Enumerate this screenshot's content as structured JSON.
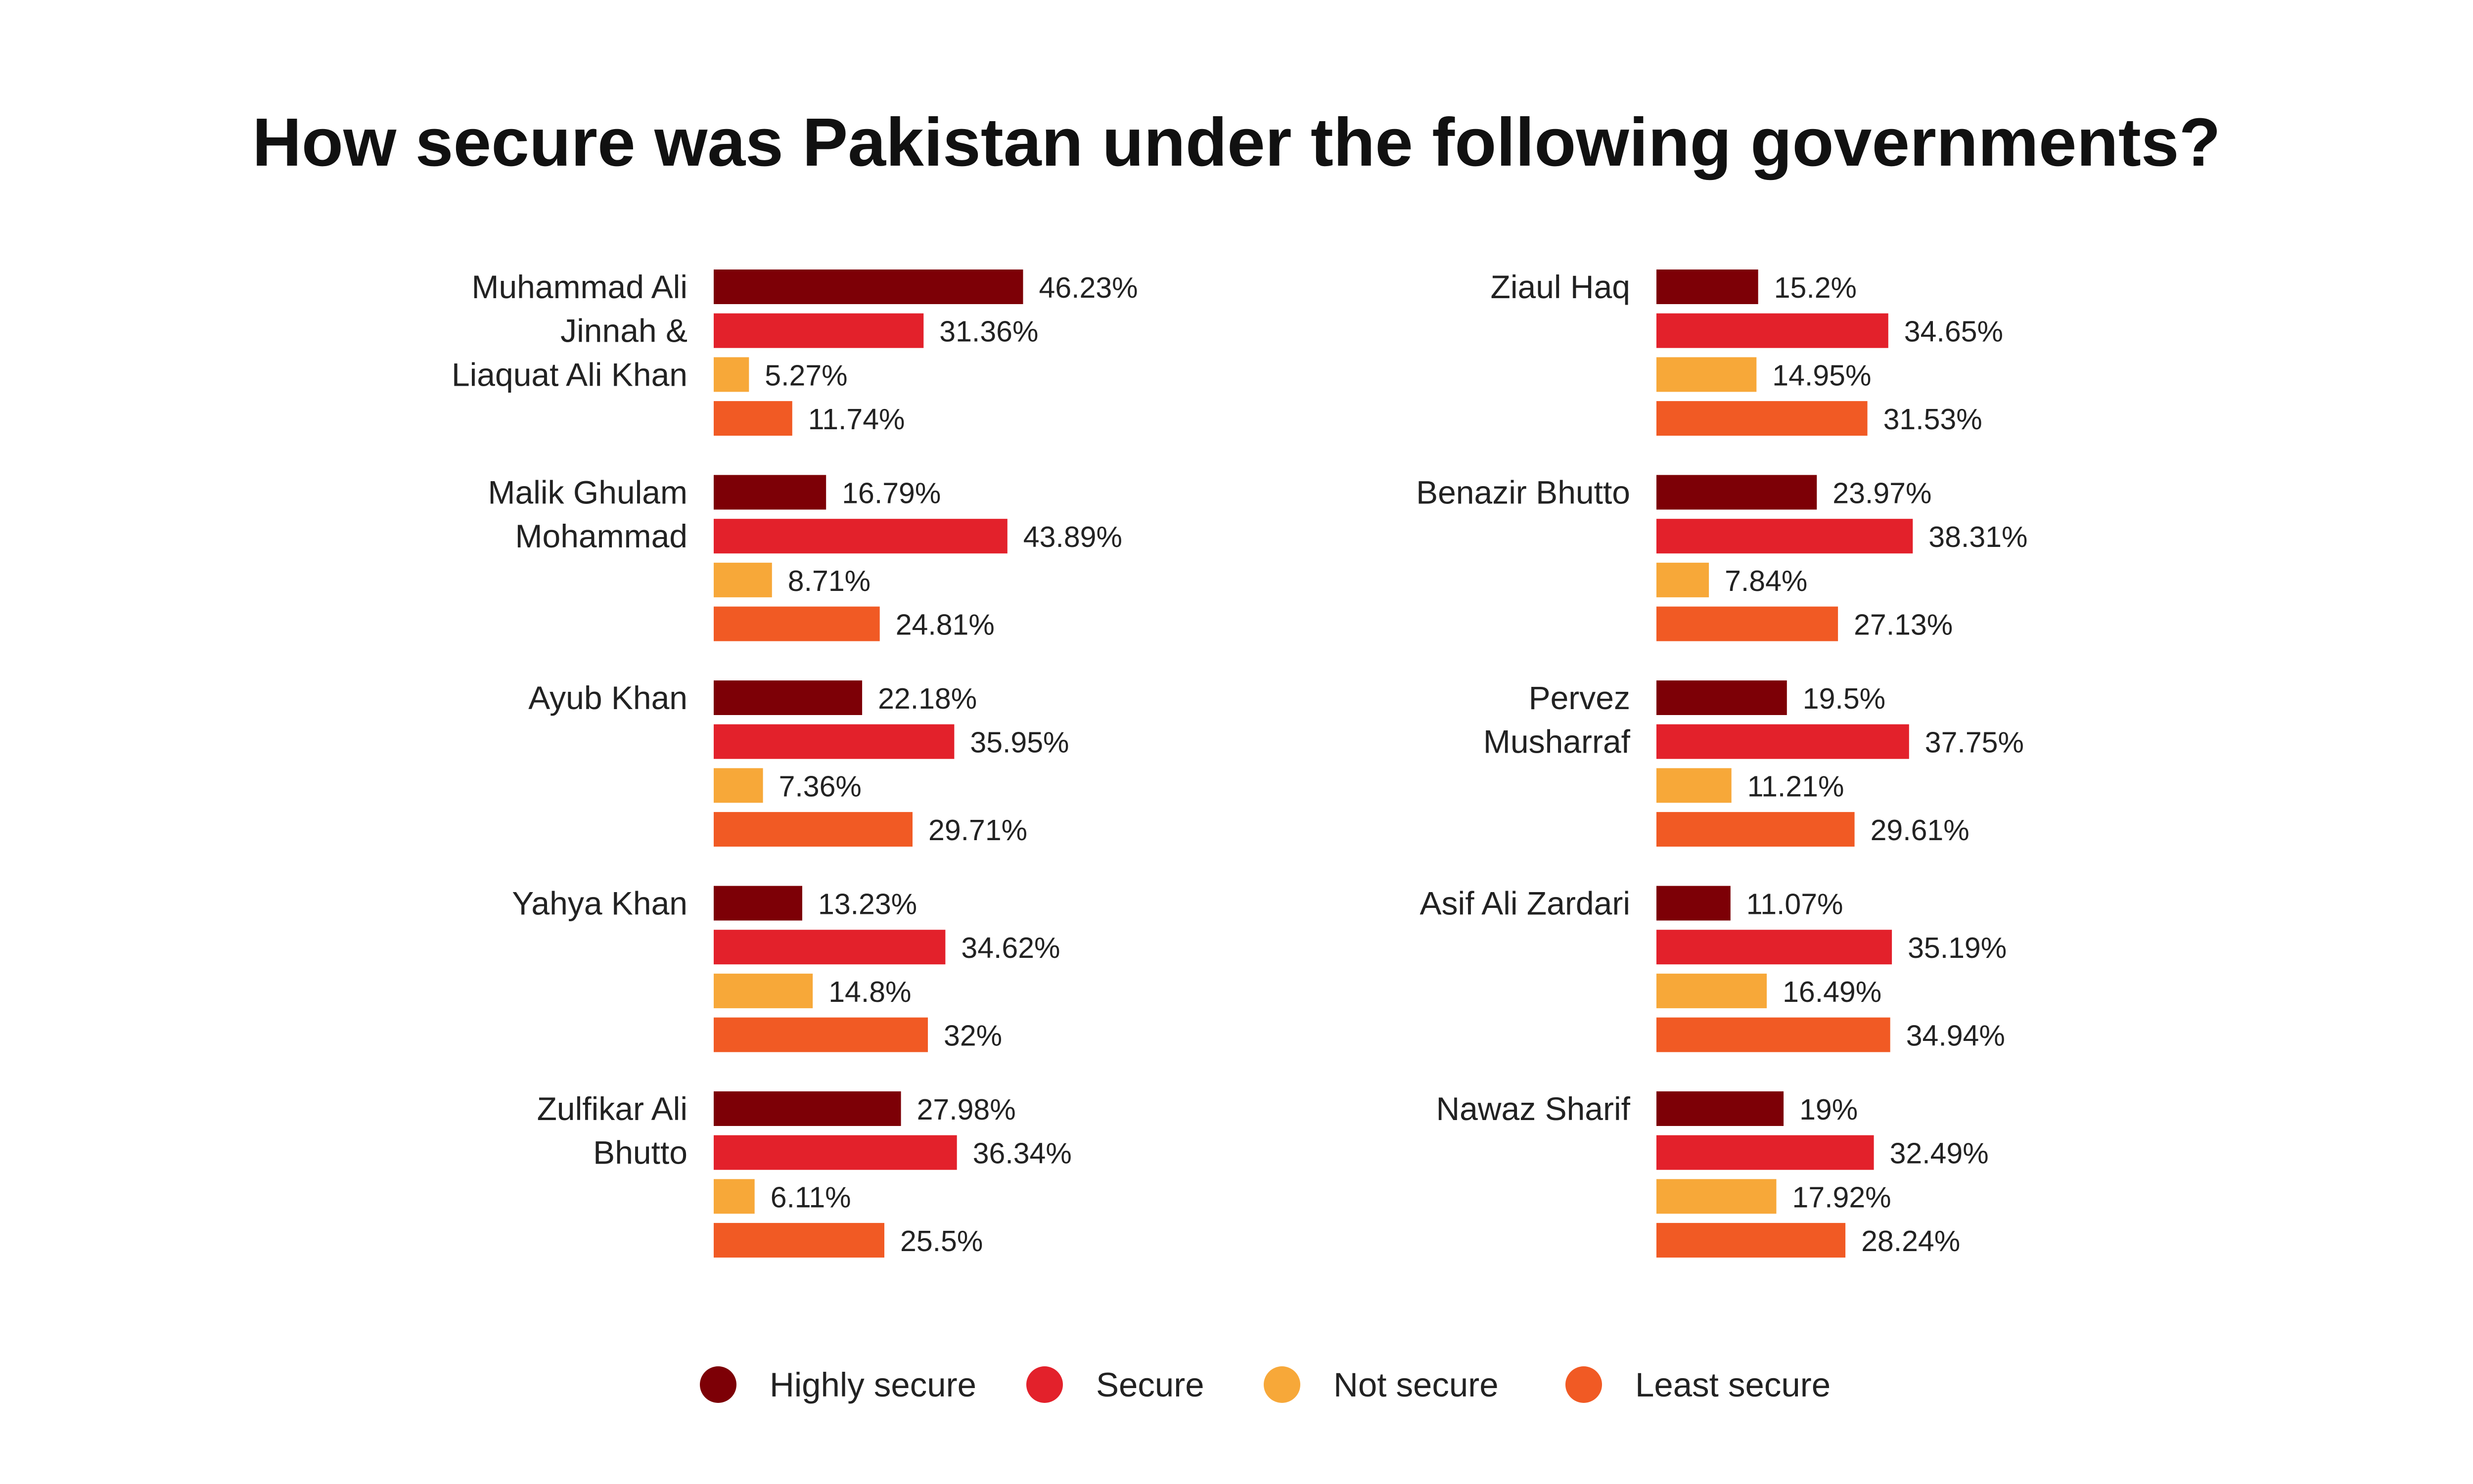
{
  "chart_data": {
    "type": "bar",
    "title": "How secure was Pakistan under the following governments?",
    "categories": [
      "Muhammad Ali Jinnah & Liaquat Ali Khan",
      "Malik Ghulam Mohammad",
      "Ayub Khan",
      "Yahya Khan",
      "Zulfikar Ali Bhutto",
      "Ziaul Haq",
      "Benazir Bhutto",
      "Pervez Musharraf",
      "Asif Ali Zardari",
      "Nawaz Sharif"
    ],
    "category_lines": [
      [
        "Muhammad Ali",
        "Jinnah &",
        "Liaquat Ali Khan"
      ],
      [
        "Malik Ghulam",
        "Mohammad"
      ],
      [
        "Ayub Khan"
      ],
      [
        "Yahya Khan"
      ],
      [
        "Zulfikar Ali",
        "Bhutto"
      ],
      [
        "Ziaul Haq"
      ],
      [
        "Benazir Bhutto"
      ],
      [
        "Pervez",
        "Musharraf"
      ],
      [
        "Asif Ali Zardari"
      ],
      [
        "Nawaz Sharif"
      ]
    ],
    "series": [
      {
        "name": "Highly secure",
        "color": "#7d0006",
        "values": [
          46.23,
          16.79,
          22.18,
          13.23,
          27.98,
          15.2,
          23.97,
          19.5,
          11.07,
          19
        ],
        "labels": [
          "46.23%",
          "16.79%",
          "22.18%",
          "13.23%",
          "27.98%",
          "15.2%",
          "23.97%",
          "19.5%",
          "11.07%",
          "19%"
        ]
      },
      {
        "name": "Secure",
        "color": "#e3212b",
        "values": [
          31.36,
          43.89,
          35.95,
          34.62,
          36.34,
          34.65,
          38.31,
          37.75,
          35.19,
          32.49
        ],
        "labels": [
          "31.36%",
          "43.89%",
          "35.95%",
          "34.62%",
          "36.34%",
          "34.65%",
          "38.31%",
          "37.75%",
          "35.19%",
          "32.49%"
        ]
      },
      {
        "name": "Not secure",
        "color": "#f7a839",
        "values": [
          5.27,
          8.71,
          7.36,
          14.8,
          6.11,
          14.95,
          7.84,
          11.21,
          16.49,
          17.92
        ],
        "labels": [
          "5.27%",
          "8.71%",
          "7.36%",
          "14.8%",
          "6.11%",
          "14.95%",
          "7.84%",
          "11.21%",
          "16.49%",
          "17.92%"
        ]
      },
      {
        "name": "Least secure",
        "color": "#f15a24",
        "values": [
          11.74,
          24.81,
          29.71,
          32,
          25.5,
          31.53,
          27.13,
          29.61,
          34.94,
          28.24
        ],
        "labels": [
          "11.74%",
          "24.81%",
          "29.71%",
          "32%",
          "25.5%",
          "31.53%",
          "27.13%",
          "29.61%",
          "34.94%",
          "28.24%"
        ]
      }
    ],
    "unit": "%",
    "legend_position": "bottom",
    "grid": false
  }
}
